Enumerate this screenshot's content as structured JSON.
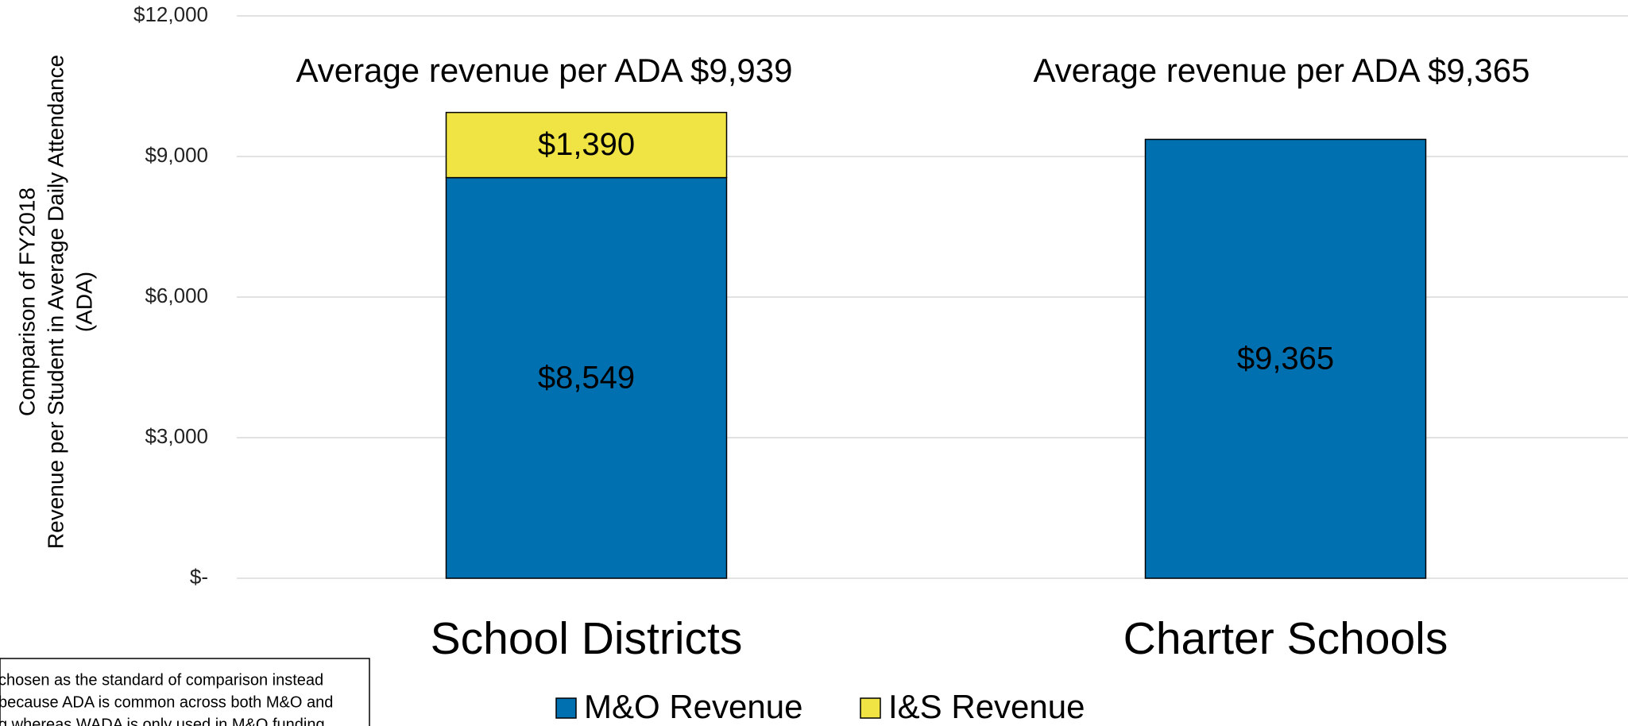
{
  "chart_data": {
    "type": "stacked_bar",
    "ylabel": [
      "Comparison of FY2018",
      "Revenue per Student in Average Daily Attendance",
      "(ADA)"
    ],
    "categories": [
      "School Districts",
      "Charter Schools"
    ],
    "series": [
      {
        "name": "M&O Revenue",
        "color": "#0070b0",
        "values": [
          8549,
          9365
        ],
        "value_labels": [
          "$8,549",
          "$9,365"
        ]
      },
      {
        "name": "I&S Revenue",
        "color": "#efe444",
        "values": [
          1390,
          null
        ],
        "value_labels": [
          "$1,390",
          null
        ]
      }
    ],
    "annotations": [
      "Average revenue per ADA $9,939",
      "Average revenue per ADA $9,365"
    ],
    "ylim": [
      0,
      12000
    ],
    "yticks": [
      {
        "value": 0,
        "label": "$-"
      },
      {
        "value": 3000,
        "label": "$3,000"
      },
      {
        "value": 6000,
        "label": "$6,000"
      },
      {
        "value": 9000,
        "label": "$9,000"
      },
      {
        "value": 12000,
        "label": "$12,000"
      }
    ],
    "grid": true,
    "legend": "bottom",
    "footnote": [
      "chosen as the standard of comparison instead",
      "because ADA is common across both M&O and",
      "g whereas WADA is only used in M&O funding"
    ]
  }
}
